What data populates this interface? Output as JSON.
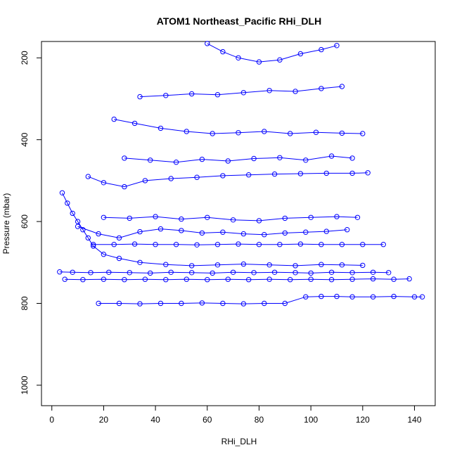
{
  "chart_data": {
    "type": "line",
    "title": "ATOM1 Northeast_Pacific RHi_DLH",
    "xlabel": "RHi_DLH",
    "ylabel": "Pressure (mbar)",
    "xlim": [
      -4,
      148
    ],
    "ylim": [
      1050,
      160
    ],
    "y_reversed": true,
    "x_ticks": [
      0,
      20,
      40,
      60,
      80,
      100,
      120,
      140
    ],
    "y_ticks": [
      200,
      400,
      600,
      800,
      1000
    ],
    "grid": false,
    "marker": "open-circle",
    "series_color": "#0000ff",
    "series": [
      {
        "x": [
          18,
          26,
          34,
          42,
          50,
          58,
          66,
          74,
          82,
          90,
          98,
          104,
          110,
          116,
          124,
          132,
          140,
          143
        ],
        "y": [
          800,
          800,
          801,
          800,
          800,
          799,
          800,
          801,
          800,
          800,
          784,
          783,
          783,
          784,
          784,
          783,
          784,
          784
        ]
      },
      {
        "x": [
          3,
          8,
          15,
          22,
          30,
          38,
          46,
          54,
          62,
          70,
          78,
          86,
          94,
          100,
          108,
          116,
          124,
          130
        ],
        "y": [
          723,
          724,
          725,
          724,
          725,
          726,
          724,
          725,
          726,
          724,
          725,
          724,
          725,
          726,
          724,
          725,
          724,
          725
        ]
      },
      {
        "x": [
          5,
          12,
          20,
          28,
          36,
          44,
          52,
          60,
          68,
          76,
          84,
          92,
          100,
          108,
          116,
          124,
          132,
          138
        ],
        "y": [
          741,
          742,
          741,
          742,
          741,
          742,
          741,
          742,
          741,
          742,
          741,
          742,
          741,
          742,
          741,
          740,
          741,
          740
        ]
      },
      {
        "x": [
          16,
          24,
          32,
          40,
          48,
          56,
          64,
          72,
          80,
          88,
          96,
          104,
          112,
          120,
          128
        ],
        "y": [
          656,
          656,
          655,
          656,
          656,
          657,
          656,
          655,
          656,
          656,
          655,
          656,
          656,
          656,
          656
        ]
      },
      {
        "x": [
          4,
          6,
          8,
          10,
          12,
          14,
          16,
          20,
          26,
          34,
          44,
          54,
          64,
          74,
          84,
          94,
          104,
          112,
          120
        ],
        "y": [
          530,
          555,
          580,
          600,
          620,
          640,
          660,
          680,
          690,
          700,
          705,
          708,
          706,
          704,
          706,
          708,
          705,
          706,
          707
        ]
      },
      {
        "x": [
          14,
          20,
          28,
          36,
          46,
          56,
          66,
          76,
          86,
          96,
          106,
          116,
          122
        ],
        "y": [
          490,
          505,
          515,
          500,
          495,
          492,
          488,
          486,
          484,
          483,
          482,
          482,
          481
        ]
      },
      {
        "x": [
          24,
          32,
          42,
          52,
          62,
          72,
          82,
          92,
          102,
          112,
          120
        ],
        "y": [
          350,
          360,
          372,
          380,
          385,
          383,
          380,
          385,
          382,
          384,
          385
        ]
      },
      {
        "x": [
          34,
          44,
          54,
          64,
          74,
          84,
          94,
          104,
          112
        ],
        "y": [
          295,
          292,
          288,
          290,
          285,
          280,
          282,
          275,
          270
        ]
      },
      {
        "x": [
          60,
          66,
          72,
          80,
          88,
          96,
          104,
          110
        ],
        "y": [
          165,
          185,
          200,
          210,
          205,
          190,
          180,
          170
        ]
      },
      {
        "x": [
          20,
          30,
          40,
          50,
          60,
          70,
          80,
          90,
          100,
          110,
          118
        ],
        "y": [
          590,
          592,
          588,
          594,
          590,
          596,
          598,
          592,
          590,
          588,
          590
        ]
      },
      {
        "x": [
          10,
          18,
          26,
          34,
          42,
          50,
          58,
          66,
          74,
          82,
          90,
          98,
          106,
          114
        ],
        "y": [
          612,
          630,
          640,
          625,
          618,
          622,
          628,
          626,
          630,
          632,
          628,
          626,
          624,
          620
        ]
      },
      {
        "x": [
          28,
          38,
          48,
          58,
          68,
          78,
          88,
          98,
          108,
          116
        ],
        "y": [
          445,
          450,
          455,
          448,
          452,
          446,
          444,
          450,
          440,
          445
        ]
      }
    ]
  }
}
